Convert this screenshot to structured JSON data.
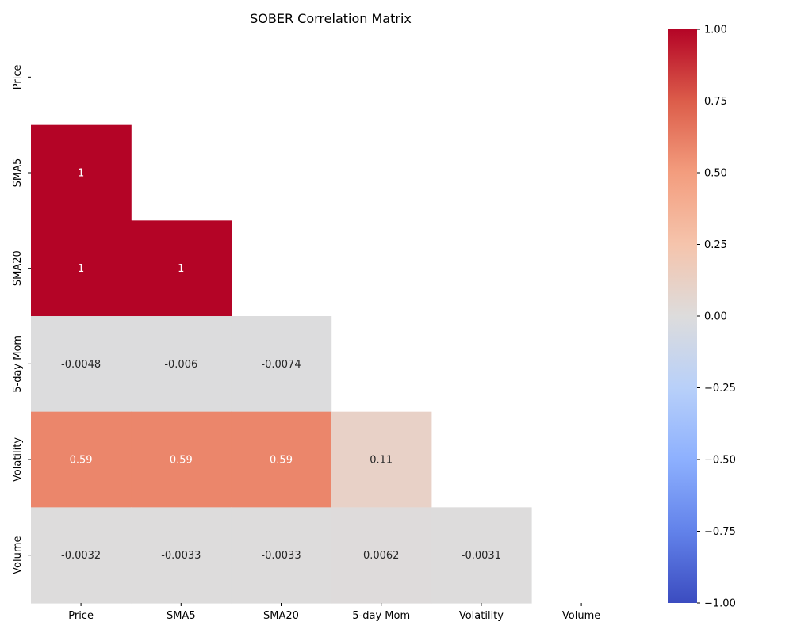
{
  "chart_data": {
    "type": "heatmap",
    "title": "SOBER Correlation Matrix",
    "labels": [
      "Price",
      "SMA5",
      "SMA20",
      "5-day Mom",
      "Volatility",
      "Volume"
    ],
    "mask": "upper-triangle-including-diagonal",
    "cells": [
      {
        "row": 1,
        "col": 0,
        "value": 1,
        "label": "1"
      },
      {
        "row": 2,
        "col": 0,
        "value": 1,
        "label": "1"
      },
      {
        "row": 2,
        "col": 1,
        "value": 1,
        "label": "1"
      },
      {
        "row": 3,
        "col": 0,
        "value": -0.0048,
        "label": "-0.0048"
      },
      {
        "row": 3,
        "col": 1,
        "value": -0.006,
        "label": "-0.006"
      },
      {
        "row": 3,
        "col": 2,
        "value": -0.0074,
        "label": "-0.0074"
      },
      {
        "row": 4,
        "col": 0,
        "value": 0.59,
        "label": "0.59"
      },
      {
        "row": 4,
        "col": 1,
        "value": 0.59,
        "label": "0.59"
      },
      {
        "row": 4,
        "col": 2,
        "value": 0.59,
        "label": "0.59"
      },
      {
        "row": 4,
        "col": 3,
        "value": 0.11,
        "label": "0.11"
      },
      {
        "row": 5,
        "col": 0,
        "value": -0.0032,
        "label": "-0.0032"
      },
      {
        "row": 5,
        "col": 1,
        "value": -0.0033,
        "label": "-0.0033"
      },
      {
        "row": 5,
        "col": 2,
        "value": -0.0033,
        "label": "-0.0033"
      },
      {
        "row": 5,
        "col": 3,
        "value": 0.0062,
        "label": "0.0062"
      },
      {
        "row": 5,
        "col": 4,
        "value": -0.0031,
        "label": "-0.0031"
      }
    ],
    "colorbar": {
      "colormap": "coolwarm",
      "range": [
        -1,
        1
      ],
      "ticks": [
        1.0,
        0.75,
        0.5,
        0.25,
        0.0,
        -0.25,
        -0.5,
        -0.75,
        -1.0
      ],
      "tick_labels": [
        "1.00",
        "0.75",
        "0.50",
        "0.25",
        "0.00",
        "−0.25",
        "−0.50",
        "−0.75",
        "−1.00"
      ]
    }
  }
}
